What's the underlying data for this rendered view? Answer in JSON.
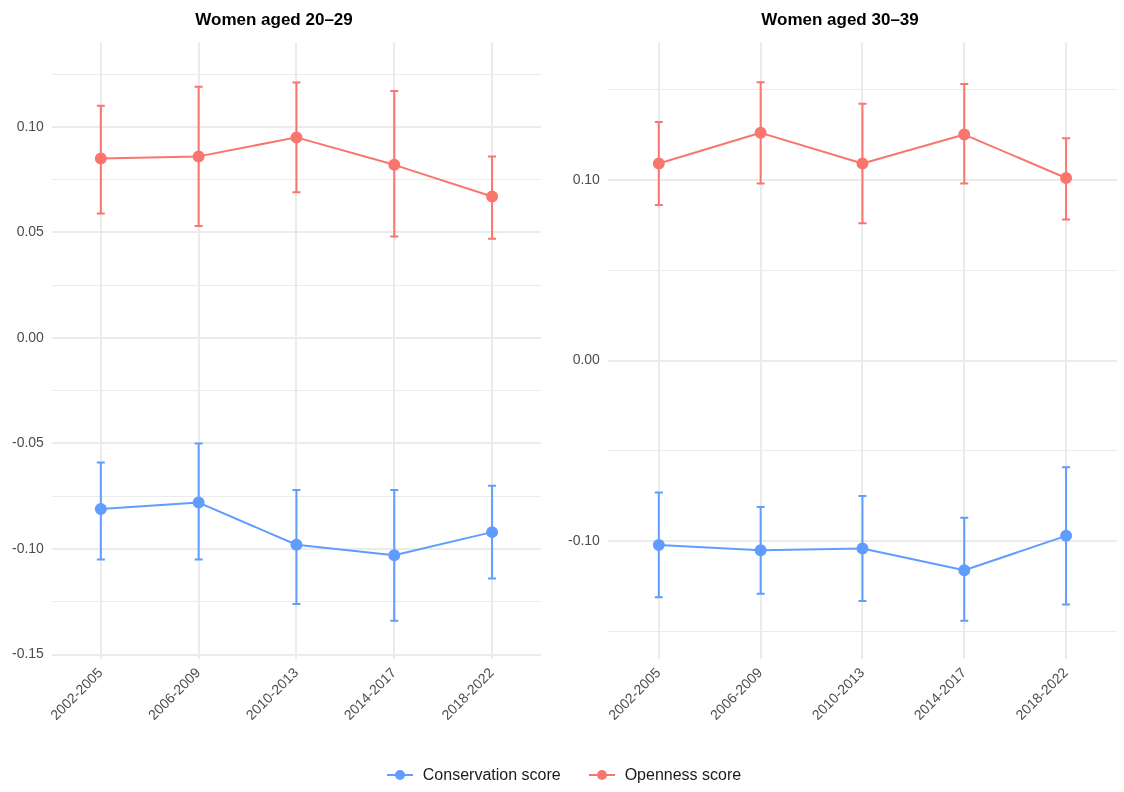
{
  "chart_data": [
    {
      "type": "line",
      "title": "Women aged 20–29",
      "categories": [
        "2002-2005",
        "2006-2009",
        "2010-2013",
        "2014-2017",
        "2018-2022"
      ],
      "series": [
        {
          "name": "Conservation score",
          "color": "#619cff",
          "values": [
            -0.081,
            -0.078,
            -0.098,
            -0.103,
            -0.092
          ],
          "errors": [
            [
              -0.105,
              -0.059
            ],
            [
              -0.105,
              -0.05
            ],
            [
              -0.126,
              -0.072
            ],
            [
              -0.134,
              -0.072
            ],
            [
              -0.114,
              -0.07
            ]
          ]
        },
        {
          "name": "Openness score",
          "color": "#f8766d",
          "values": [
            0.085,
            0.086,
            0.095,
            0.082,
            0.067
          ],
          "errors": [
            [
              0.059,
              0.11
            ],
            [
              0.053,
              0.119
            ],
            [
              0.069,
              0.121
            ],
            [
              0.048,
              0.117
            ],
            [
              0.047,
              0.086
            ]
          ]
        }
      ],
      "ylim": [
        -0.152,
        0.14
      ],
      "yticks": [
        {
          "value": -0.15,
          "label": "-0.15"
        },
        {
          "value": -0.125,
          "label": null
        },
        {
          "value": -0.1,
          "label": "-0.10"
        },
        {
          "value": -0.075,
          "label": null
        },
        {
          "value": -0.05,
          "label": "-0.05"
        },
        {
          "value": -0.025,
          "label": null
        },
        {
          "value": 0,
          "label": "0.00"
        },
        {
          "value": 0.025,
          "label": null
        },
        {
          "value": 0.05,
          "label": "0.05"
        },
        {
          "value": 0.075,
          "label": null
        },
        {
          "value": 0.1,
          "label": "0.10"
        },
        {
          "value": 0.125,
          "label": null
        }
      ],
      "grid": true,
      "marker": "circle",
      "line_style": "solid",
      "legend": "bottom"
    },
    {
      "type": "line",
      "title": "Women aged 30–39",
      "categories": [
        "2002-2005",
        "2006-2009",
        "2010-2013",
        "2014-2017",
        "2018-2022"
      ],
      "series": [
        {
          "color": "#619cff",
          "values": [
            -0.102,
            -0.105,
            -0.104,
            -0.116,
            -0.097
          ],
          "errors": [
            [
              -0.131,
              -0.073
            ],
            [
              -0.129,
              -0.081
            ],
            [
              -0.133,
              -0.075
            ],
            [
              -0.144,
              -0.087
            ],
            [
              -0.135,
              -0.059
            ]
          ]
        },
        {
          "color": "#f8766d",
          "values": [
            0.109,
            0.126,
            0.109,
            0.125,
            0.101
          ],
          "errors": [
            [
              0.086,
              0.132
            ],
            [
              0.098,
              0.154
            ],
            [
              0.076,
              0.142
            ],
            [
              0.098,
              0.153
            ],
            [
              0.078,
              0.123
            ]
          ]
        }
      ],
      "ylim": [
        -0.165,
        0.176
      ],
      "yticks": [
        {
          "value": -0.15,
          "label": null
        },
        {
          "value": -0.1,
          "label": "-0.10"
        },
        {
          "value": -0.05,
          "label": null
        },
        {
          "value": 0,
          "label": "0.00"
        },
        {
          "value": 0.05,
          "label": null
        },
        {
          "value": 0.1,
          "label": "0.10"
        },
        {
          "value": 0.15,
          "label": null
        }
      ],
      "grid": true,
      "marker": "circle",
      "line_style": "solid"
    }
  ]
}
